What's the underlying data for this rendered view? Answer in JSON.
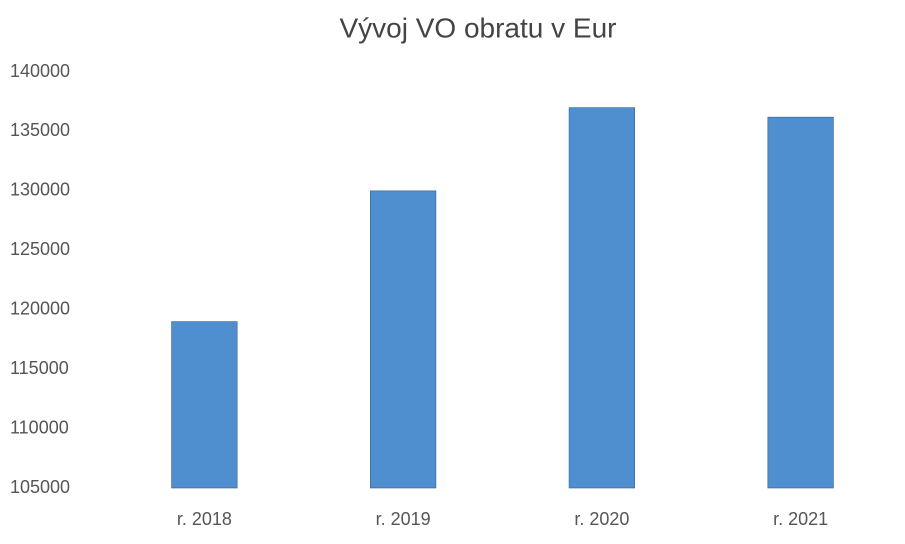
{
  "chart_data": {
    "type": "bar",
    "title": "Vývoj VO obratu v Eur",
    "categories": [
      "r. 2018",
      "r. 2019",
      "r. 2020",
      "r. 2021"
    ],
    "values": [
      119000,
      130000,
      137000,
      136200
    ],
    "color": "#4f8ecf",
    "ylim": [
      105000,
      140000
    ],
    "yticks": [
      105000,
      110000,
      115000,
      120000,
      125000,
      130000,
      135000,
      140000
    ],
    "grid": false
  }
}
